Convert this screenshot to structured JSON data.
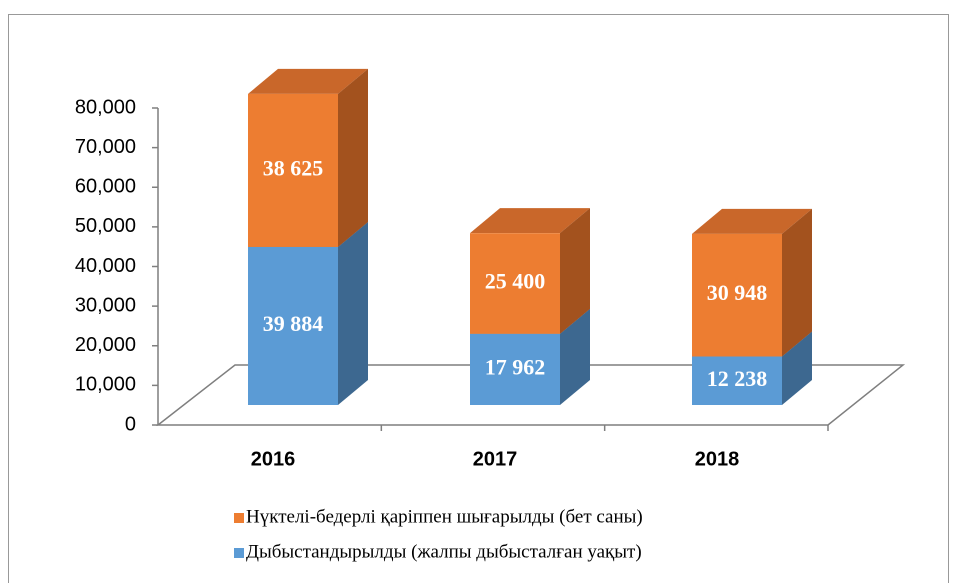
{
  "chart_data": {
    "type": "bar3d_stacked",
    "categories": [
      "2016",
      "2017",
      "2018"
    ],
    "series": [
      {
        "name": "Дыбыстандырылды (жалпы дыбысталған уақыт)",
        "color": "#5b9bd5",
        "side_color": "#3d6890",
        "top_color": "#4f88bb",
        "values": [
          39884,
          17962,
          12238
        ],
        "value_labels": [
          "39 884",
          "17 962",
          "12 238"
        ]
      },
      {
        "name": "Нүктелі-бедерлі қаріппен шығарылды (бет саны)",
        "color": "#ed7d31",
        "side_color": "#a3521e",
        "top_color": "#c9672a",
        "values": [
          38625,
          25400,
          30948
        ],
        "value_labels": [
          "38 625",
          "25 400",
          "30 948"
        ]
      }
    ],
    "ylim": [
      0,
      80000
    ],
    "yticks": [
      0,
      {
        "value": 10000,
        "label": "10,000"
      },
      {
        "value": 20000,
        "label": "20,000"
      },
      {
        "value": 30000,
        "label": "30,000"
      },
      {
        "value": 40000,
        "label": "40,000"
      },
      {
        "value": 50000,
        "label": "50,000"
      },
      {
        "value": 60000,
        "label": "60,000"
      },
      {
        "value": 70000,
        "label": "70,000"
      },
      {
        "value": 80000,
        "label": "80,000"
      }
    ]
  }
}
